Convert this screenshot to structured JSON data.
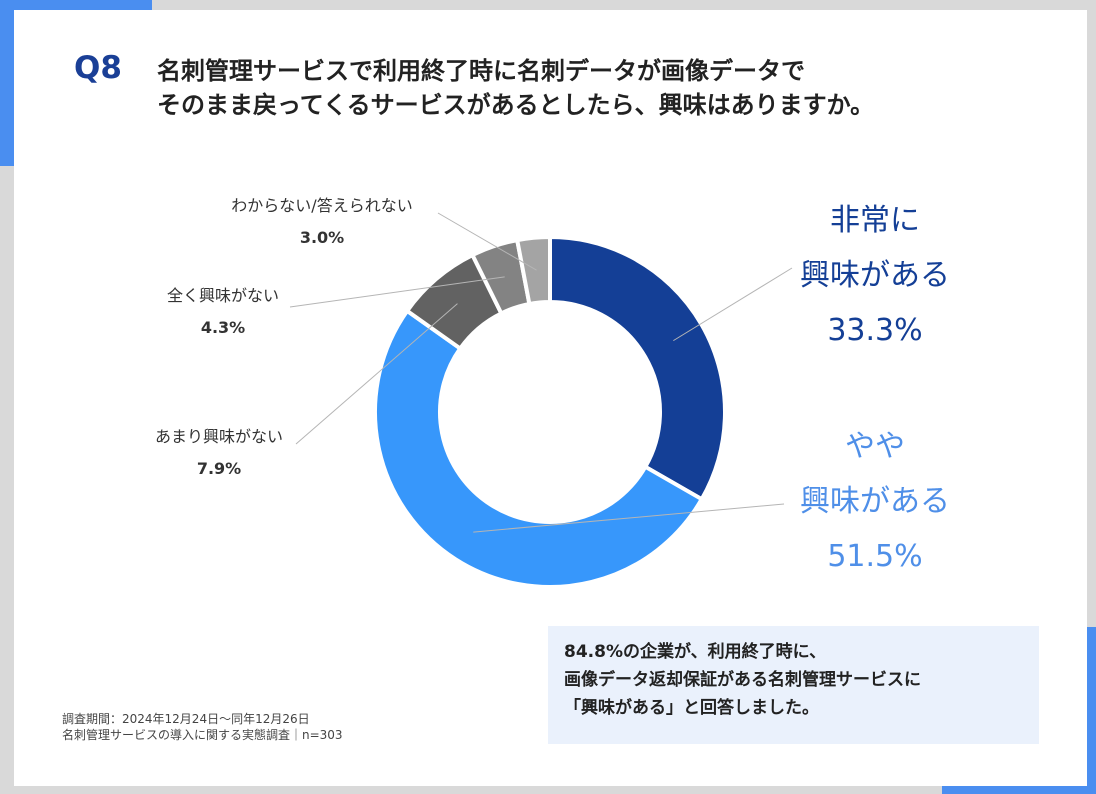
{
  "question": {
    "number": "Q8",
    "line1": "名刺管理サービスで利用終了時に名刺データが画像データで",
    "line2": "そのまま戻ってくるサービスがあるとしたら、興味はありますか。"
  },
  "colors": {
    "very": "#143f96",
    "somewhat": "#3797fb",
    "not_much": "#626262",
    "not_at_all": "#838383",
    "unknown": "#a4a4a4",
    "accent": "#4a8ef0"
  },
  "chart_data": {
    "type": "pie",
    "donut": true,
    "start": "12 o'clock, clockwise",
    "categories": [
      "非常に興味がある",
      "やや興味がある",
      "あまり興味がない",
      "全く興味がない",
      "わからない/答えられない"
    ],
    "values": [
      33.3,
      51.5,
      7.9,
      4.3,
      3.0
    ],
    "unit": "%",
    "labels": {
      "very": {
        "line1": "非常に",
        "line2": "興味がある",
        "value": "33.3%"
      },
      "somewhat": {
        "line1": "やや",
        "line2": "興味がある",
        "value": "51.5%"
      },
      "not_much": {
        "name": "あまり興味がない",
        "value": "7.9%"
      },
      "not_at_all": {
        "name": "全く興味がない",
        "value": "4.3%"
      },
      "unknown": {
        "name": "わからない/答えられない",
        "value": "3.0%"
      }
    }
  },
  "summary": {
    "line1": "84.8%の企業が、利用終了時に、",
    "line2": "画像データ返却保証がある名刺管理サービスに",
    "line3": "「興味がある」と回答しました。"
  },
  "footnote": {
    "line1": "調査期間：2024年12月24日〜同年12月26日",
    "line2": "名刺管理サービスの導入に関する実態調査｜n=303"
  }
}
